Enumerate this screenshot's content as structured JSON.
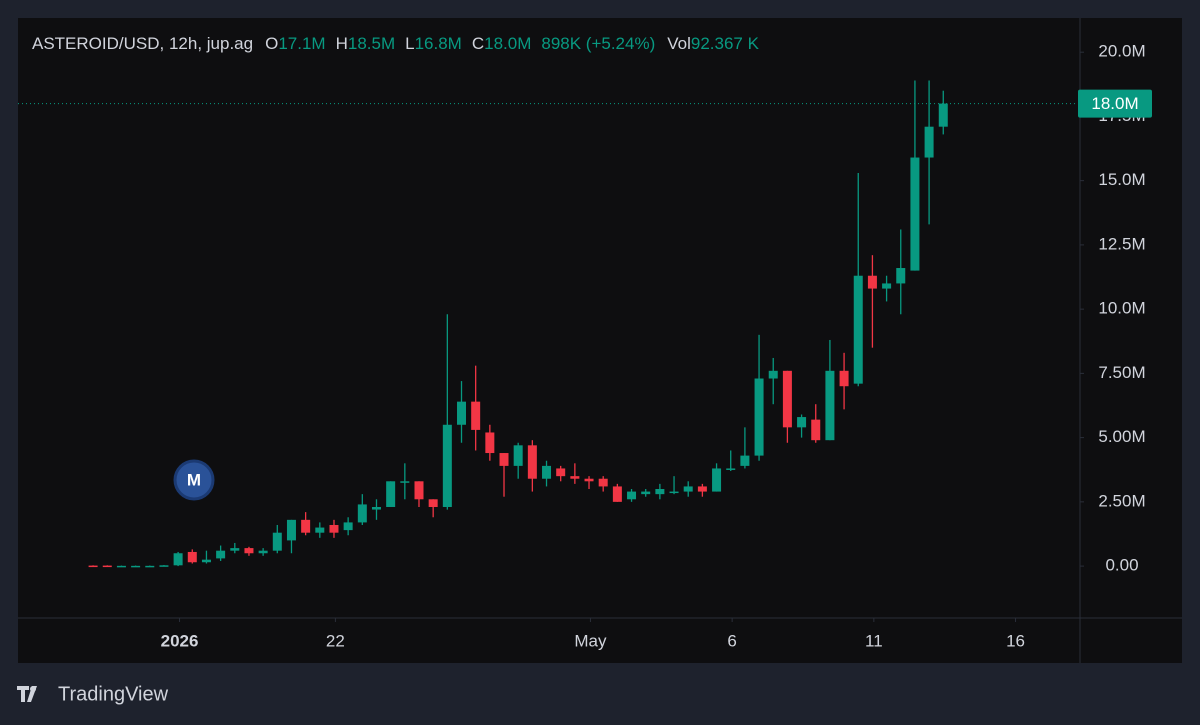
{
  "chart_data": {
    "type": "candlestick",
    "header": {
      "symbol": "ASTEROID/USD, 12h, jup.ag",
      "ohlc_labels": [
        "O",
        "H",
        "L",
        "C"
      ],
      "ohlc_values": [
        "17.1M",
        "18.5M",
        "16.8M",
        "18.0M"
      ],
      "change": "898K (+5.24%)",
      "volume_label": "Vol",
      "volume": "92.367 K"
    },
    "up_color": "#089981",
    "down_color": "#f23645",
    "open": [
      0.02,
      0.02,
      0.0,
      0.0,
      0.0,
      0.0,
      0.03,
      0.55,
      0.15,
      0.3,
      0.6,
      0.7,
      0.5,
      0.6,
      1.0,
      1.8,
      1.3,
      1.6,
      1.4,
      1.7,
      2.2,
      2.3,
      3.3,
      3.3,
      2.6,
      2.3,
      5.5,
      6.4,
      5.2,
      4.4,
      3.9,
      4.7,
      3.4,
      3.8,
      3.5,
      3.4,
      3.4,
      3.1,
      2.6,
      2.8,
      2.8,
      2.9,
      2.9,
      3.1,
      2.9,
      3.8,
      3.9,
      4.3,
      7.3,
      7.6,
      5.4,
      5.7,
      4.9,
      7.6,
      7.1,
      11.3,
      10.8,
      11.0,
      11.5,
      15.9,
      17.1
    ],
    "high": [
      0.03,
      0.03,
      0.02,
      0.02,
      0.02,
      0.04,
      0.55,
      0.65,
      0.6,
      0.8,
      0.9,
      0.75,
      0.7,
      1.6,
      1.8,
      2.1,
      1.7,
      1.8,
      1.9,
      2.8,
      2.6,
      3.3,
      4.0,
      3.3,
      2.6,
      9.8,
      7.2,
      7.8,
      5.5,
      4.4,
      4.8,
      4.9,
      4.1,
      3.9,
      4.0,
      3.5,
      3.5,
      3.2,
      3.0,
      3.0,
      3.2,
      3.5,
      3.3,
      3.2,
      4.0,
      4.5,
      5.4,
      9.0,
      8.1,
      7.6,
      5.9,
      6.3,
      8.8,
      8.3,
      15.3,
      12.1,
      11.3,
      13.1,
      18.9,
      18.9,
      18.5
    ],
    "low": [
      0.0,
      0.0,
      0.0,
      0.0,
      0.0,
      0.0,
      0.0,
      0.1,
      0.1,
      0.2,
      0.5,
      0.4,
      0.4,
      0.5,
      0.5,
      1.2,
      1.1,
      1.1,
      1.2,
      1.6,
      1.8,
      2.3,
      2.6,
      2.3,
      1.9,
      2.2,
      4.8,
      4.5,
      4.1,
      2.7,
      3.4,
      2.9,
      3.1,
      3.3,
      3.2,
      3.0,
      2.9,
      2.5,
      2.5,
      2.7,
      2.6,
      2.8,
      2.7,
      2.7,
      2.9,
      3.7,
      3.8,
      4.1,
      6.3,
      4.8,
      5.0,
      4.8,
      4.9,
      6.1,
      7.0,
      8.5,
      10.3,
      9.8,
      11.5,
      13.3,
      16.8
    ],
    "close": [
      0.01,
      0.01,
      0.01,
      0.01,
      0.01,
      0.03,
      0.5,
      0.15,
      0.25,
      0.6,
      0.7,
      0.5,
      0.6,
      1.3,
      1.8,
      1.3,
      1.5,
      1.3,
      1.7,
      2.4,
      2.3,
      3.3,
      3.3,
      2.6,
      2.3,
      5.5,
      6.4,
      5.3,
      4.4,
      3.9,
      4.7,
      3.4,
      3.9,
      3.5,
      3.4,
      3.3,
      3.1,
      2.5,
      2.9,
      2.9,
      3.0,
      2.9,
      3.1,
      2.9,
      3.8,
      3.8,
      4.3,
      7.3,
      7.6,
      5.4,
      5.8,
      4.9,
      7.6,
      7.0,
      11.3,
      10.8,
      11.0,
      11.6,
      15.9,
      17.1,
      18.0
    ],
    "xlim": [
      -5.3,
      69.65
    ],
    "xticks": [
      {
        "value": 6.1,
        "label": "2026"
      },
      {
        "value": 17.1,
        "label": "22"
      },
      {
        "value": 35.1,
        "label": "May"
      },
      {
        "value": 45.1,
        "label": "6"
      },
      {
        "value": 55.1,
        "label": "11"
      },
      {
        "value": 65.1,
        "label": "16"
      }
    ],
    "ylim": [
      -2.02,
      21.33
    ],
    "yticks": [
      {
        "value": 0,
        "label": "0.00"
      },
      {
        "value": 2.5,
        "label": "2.50M"
      },
      {
        "value": 5,
        "label": "5.00M"
      },
      {
        "value": 7.5,
        "label": "7.50M"
      },
      {
        "value": 10,
        "label": "10.0M"
      },
      {
        "value": 12.5,
        "label": "12.5M"
      },
      {
        "value": 15,
        "label": "15.0M"
      },
      {
        "value": 17.5,
        "label": "17.5M"
      },
      {
        "value": 20,
        "label": "20.0M"
      }
    ],
    "last_price": {
      "value": 18.0,
      "label": "18.0M"
    },
    "marker": "M",
    "brand": "TradingView"
  }
}
